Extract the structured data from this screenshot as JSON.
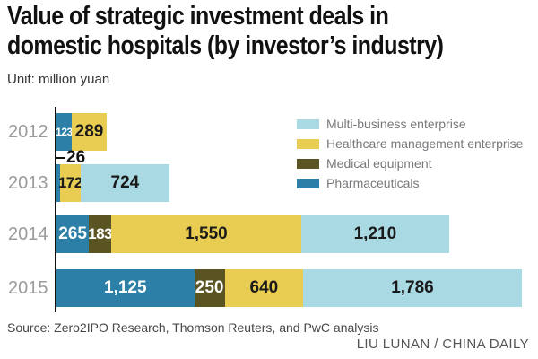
{
  "title_line1": "Value of strategic investment deals in",
  "title_line2": "domestic hospitals (by investor’s industry)",
  "unit_label": "Unit: million yuan",
  "source": "Source: Zero2IPO Research, Thomson Reuters, and PwC analysis",
  "credit": "LIU LUNAN / CHINA DAILY",
  "callout": {
    "label": "26"
  },
  "colors": {
    "multi_business": "#a9d9e3",
    "healthcare_management": "#e8cd52",
    "medical_equipment": "#5a5322",
    "pharmaceuticals": "#2c7fa6",
    "axis": "#111111",
    "year_label": "#9b9b9b",
    "legend_text": "#77787b",
    "value_dark": "#1a1a1a",
    "value_light": "#ffffff"
  },
  "legend": [
    {
      "label": "Multi-business enterprise",
      "color": "#a9d9e3"
    },
    {
      "label": "Healthcare management enterprise",
      "color": "#e8cd52"
    },
    {
      "label": "Medical equipment",
      "color": "#5a5322"
    },
    {
      "label": "Pharmaceuticals",
      "color": "#2c7fa6"
    }
  ],
  "chart_data": {
    "type": "bar",
    "orientation": "horizontal",
    "stacked": true,
    "title": "Value of strategic investment deals in domestic hospitals (by investor’s industry)",
    "unit": "million yuan",
    "categories": [
      "2012",
      "2013",
      "2014",
      "2015"
    ],
    "series": [
      {
        "name": "Pharmaceuticals",
        "color": "#2c7fa6",
        "label_color": "#ffffff",
        "values": [
          123,
          26,
          265,
          1125
        ]
      },
      {
        "name": "Medical equipment",
        "color": "#5a5322",
        "label_color": "#ffffff",
        "values": [
          0,
          0,
          183,
          250
        ]
      },
      {
        "name": "Healthcare management enterprise",
        "color": "#e8cd52",
        "label_color": "#1a1a1a",
        "values": [
          289,
          172,
          1550,
          640
        ]
      },
      {
        "name": "Multi-business enterprise",
        "color": "#a9d9e3",
        "label_color": "#1a1a1a",
        "values": [
          0,
          724,
          1210,
          1786
        ]
      }
    ],
    "totals": [
      412,
      922,
      3208,
      3801
    ],
    "xlim": [
      0,
      3801
    ],
    "grid": false,
    "legend_position": "top-right",
    "value_labels": true,
    "annotations": [
      {
        "category": "2013",
        "series": "Pharmaceuticals",
        "value": 26,
        "label": "26",
        "style": "tick-callout-above-bar"
      }
    ]
  }
}
